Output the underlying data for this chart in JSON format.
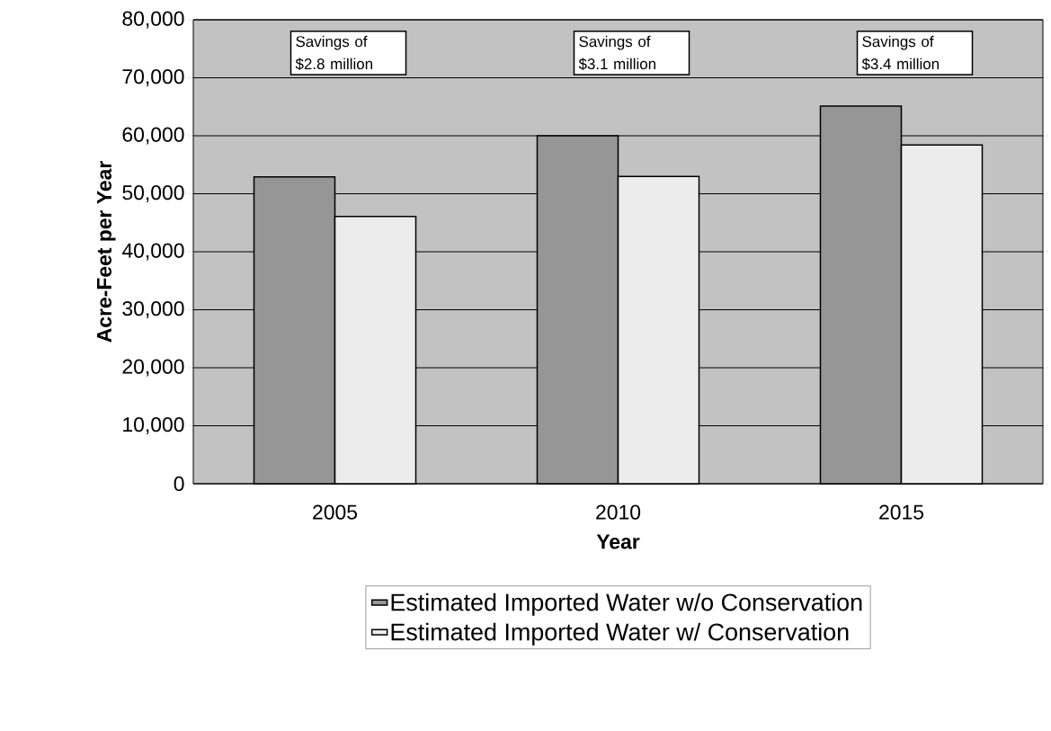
{
  "chart_data": {
    "type": "bar",
    "xlabel": "Year",
    "ylabel": "Acre-Feet per Year",
    "categories": [
      "2005",
      "2010",
      "2015"
    ],
    "series": [
      {
        "name": "Estimated Imported Water w/o Conservation",
        "color": "#969696",
        "values": [
          52900,
          60000,
          65100
        ]
      },
      {
        "name": "Estimated Imported Water w/ Conservation",
        "color": "#ececec",
        "values": [
          46100,
          53000,
          58400
        ]
      }
    ],
    "ylim": [
      0,
      80000
    ],
    "yticks": [
      0,
      {
        "value": 10000,
        "label": "10,000"
      },
      {
        "value": 20000,
        "label": "20,000"
      },
      {
        "value": 30000,
        "label": "30,000"
      },
      {
        "value": 40000,
        "label": "40,000"
      },
      {
        "value": 50000,
        "label": "50,000"
      },
      {
        "value": 60000,
        "label": "60,000"
      },
      {
        "value": 70000,
        "label": "70,000"
      },
      {
        "value": 80000,
        "label": "80,000"
      }
    ],
    "annotations": [
      "Savings of $2.8 million",
      "Savings of $3.1 million",
      "Savings of $3.4 million"
    ],
    "grid": "y",
    "legend": "bottom"
  }
}
